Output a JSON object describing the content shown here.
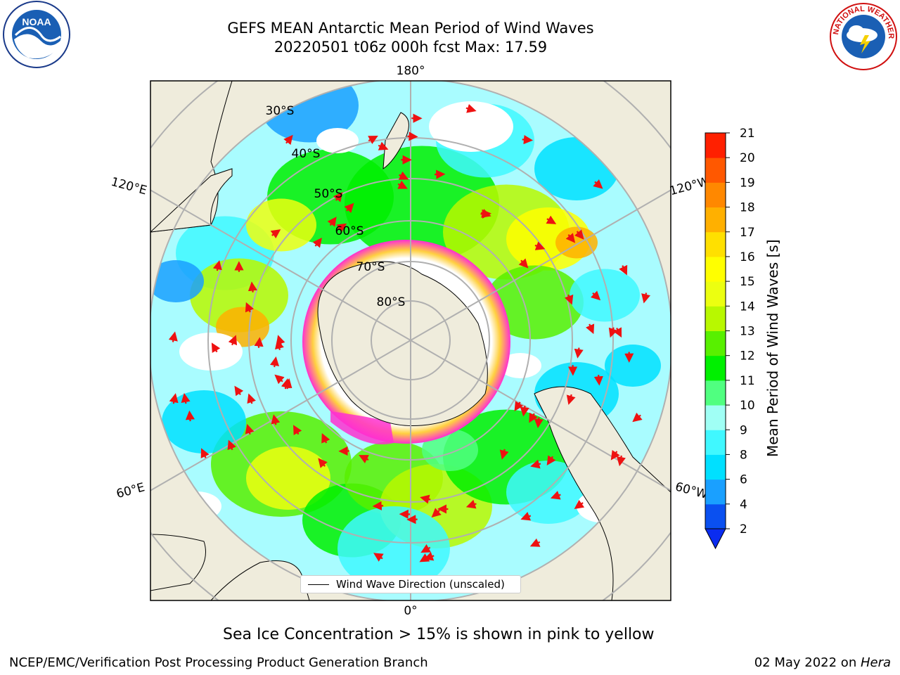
{
  "header": {
    "title_line1": "GEFS MEAN Antarctic Mean Period of Wind Waves",
    "title_line2": "20220501 t06z 000h fcst   Max: 17.59"
  },
  "logos": {
    "noaa": "NOAA",
    "nws": "NATIONAL WEATHER SERVICE"
  },
  "map": {
    "longitude_labels": [
      "180°",
      "120°E",
      "120°W",
      "60°E",
      "60°W",
      "0°"
    ],
    "latitude_labels": [
      "30°S",
      "40°S",
      "50°S",
      "60°S",
      "70°S",
      "80°S"
    ],
    "legend_label": "Wind Wave Direction (unscaled)"
  },
  "colorbar": {
    "label": "Mean Period of Wind Waves [s]",
    "ticks": [
      "2",
      "4",
      "6",
      "8",
      "9",
      "10",
      "11",
      "12",
      "13",
      "14",
      "15",
      "16",
      "17",
      "18",
      "19",
      "20",
      "21"
    ],
    "colors": [
      "#0a50f0",
      "#1aa0ff",
      "#00e0ff",
      "#40f8ff",
      "#a0fff5",
      "#50ff80",
      "#00f000",
      "#58f000",
      "#b8f800",
      "#ecff10",
      "#ffff00",
      "#ffe000",
      "#ffb000",
      "#ff8800",
      "#ff5800",
      "#ff2000"
    ],
    "extend_color": "#0a2cf0"
  },
  "caption": "Sea Ice Concentration > 15% is shown in pink to yellow",
  "footer": {
    "left": "NCEP/EMC/Verification Post Processing Product Generation Branch",
    "right_date": "02 May 2022 on ",
    "right_host": "Hera"
  },
  "colors": {
    "land": "#efecdc",
    "ocean_white": "#ffffff",
    "grid": "#b0b0b0",
    "arrow": "#ee1111",
    "ice_pink": "#ff30d0",
    "ice_yellow": "#ffd040"
  }
}
